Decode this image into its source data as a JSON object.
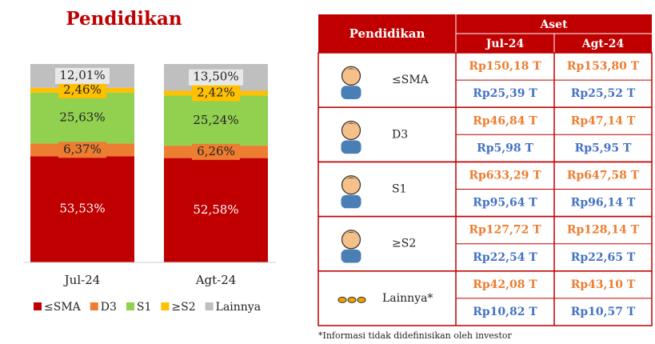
{
  "chart_data": {
    "type": "stacked_bar",
    "title": "Pendidikan",
    "categories": [
      "Jul-24",
      "Agt-24"
    ],
    "series": [
      {
        "name": "≤SMA",
        "color": "#c00000",
        "values": [
          53.53,
          52.58
        ],
        "value_labels": [
          "53,53%",
          "52,58%"
        ]
      },
      {
        "name": "D3",
        "color": "#ed7d31",
        "values": [
          6.37,
          6.26
        ],
        "value_labels": [
          "6,37%",
          "6,26%"
        ]
      },
      {
        "name": "S1",
        "color": "#92d050",
        "values": [
          25.63,
          25.24
        ],
        "value_labels": [
          "25,63%",
          "25,24%"
        ]
      },
      {
        "name": "≥S2",
        "color": "#ffc000",
        "values": [
          2.46,
          2.42
        ],
        "value_labels": [
          "2,46%",
          "2,42%"
        ]
      },
      {
        "name": "Lainnya",
        "color": "#bfbfbf",
        "values": [
          12.01,
          13.5
        ],
        "value_labels": [
          "12,01%",
          "13,50%"
        ]
      }
    ],
    "legend": "bottom"
  },
  "table": {
    "header": {
      "group": "Pendidikan",
      "aset": "Aset",
      "columns": [
        "Jul-24",
        "Agt-24"
      ]
    },
    "rows": [
      {
        "label": "≤SMA",
        "values": [
          [
            "Rp150,18 T",
            "Rp153,80 T"
          ],
          [
            "Rp25,39 T",
            "Rp25,52 T"
          ]
        ]
      },
      {
        "label": "D3",
        "values": [
          [
            "Rp46,84 T",
            "Rp47,14 T"
          ],
          [
            "Rp5,98 T",
            "Rp5,95 T"
          ]
        ]
      },
      {
        "label": "S1",
        "values": [
          [
            "Rp633,29 T",
            "Rp647,58 T"
          ],
          [
            "Rp95,64 T",
            "Rp96,14 T"
          ]
        ]
      },
      {
        "label": "≥S2",
        "values": [
          [
            "Rp127,72 T",
            "Rp128,14 T"
          ],
          [
            "Rp22,54 T",
            "Rp22,65 T"
          ]
        ]
      },
      {
        "label": "Lainnya*",
        "values": [
          [
            "Rp42,08 T",
            "Rp43,10 T"
          ],
          [
            "Rp10,82 T",
            "Rp10,57 T"
          ]
        ]
      }
    ],
    "footnote": "*Informasi tidak didefinisikan oleh investor"
  }
}
